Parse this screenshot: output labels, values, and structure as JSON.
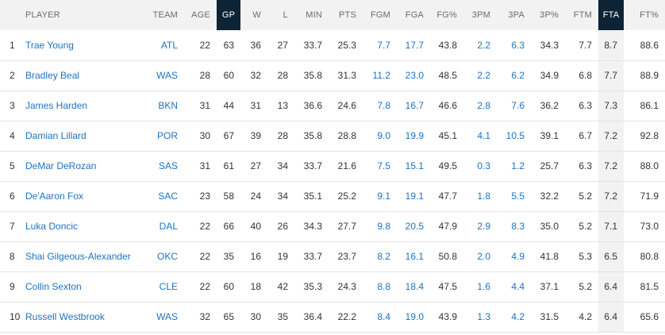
{
  "columns": [
    "",
    "PLAYER",
    "TEAM",
    "AGE",
    "GP",
    "W",
    "L",
    "MIN",
    "PTS",
    "FGM",
    "FGA",
    "FG%",
    "3PM",
    "3PA",
    "3P%",
    "FTM",
    "FTA",
    "FT%"
  ],
  "rows": [
    [
      "1",
      "Trae Young",
      "ATL",
      "22",
      "63",
      "36",
      "27",
      "33.7",
      "25.3",
      "7.7",
      "17.7",
      "43.8",
      "2.2",
      "6.3",
      "34.3",
      "7.7",
      "8.7",
      "88.6"
    ],
    [
      "2",
      "Bradley Beal",
      "WAS",
      "28",
      "60",
      "32",
      "28",
      "35.8",
      "31.3",
      "11.2",
      "23.0",
      "48.5",
      "2.2",
      "6.2",
      "34.9",
      "6.8",
      "7.7",
      "88.9"
    ],
    [
      "3",
      "James Harden",
      "BKN",
      "31",
      "44",
      "31",
      "13",
      "36.6",
      "24.6",
      "7.8",
      "16.7",
      "46.6",
      "2.8",
      "7.6",
      "36.2",
      "6.3",
      "7.3",
      "86.1"
    ],
    [
      "4",
      "Damian Lillard",
      "POR",
      "30",
      "67",
      "39",
      "28",
      "35.8",
      "28.8",
      "9.0",
      "19.9",
      "45.1",
      "4.1",
      "10.5",
      "39.1",
      "6.7",
      "7.2",
      "92.8"
    ],
    [
      "5",
      "DeMar DeRozan",
      "SAS",
      "31",
      "61",
      "27",
      "34",
      "33.7",
      "21.6",
      "7.5",
      "15.1",
      "49.5",
      "0.3",
      "1.2",
      "25.7",
      "6.3",
      "7.2",
      "88.0"
    ],
    [
      "6",
      "De'Aaron Fox",
      "SAC",
      "23",
      "58",
      "24",
      "34",
      "35.1",
      "25.2",
      "9.1",
      "19.1",
      "47.7",
      "1.8",
      "5.5",
      "32.2",
      "5.2",
      "7.2",
      "71.9"
    ],
    [
      "7",
      "Luka Doncic",
      "DAL",
      "22",
      "66",
      "40",
      "26",
      "34.3",
      "27.7",
      "9.8",
      "20.5",
      "47.9",
      "2.9",
      "8.3",
      "35.0",
      "5.2",
      "7.1",
      "73.0"
    ],
    [
      "8",
      "Shai Gilgeous-Alexander",
      "OKC",
      "22",
      "35",
      "16",
      "19",
      "33.7",
      "23.7",
      "8.2",
      "16.1",
      "50.8",
      "2.0",
      "4.9",
      "41.8",
      "5.3",
      "6.5",
      "80.8"
    ],
    [
      "9",
      "Collin Sexton",
      "CLE",
      "22",
      "60",
      "18",
      "42",
      "35.3",
      "24.3",
      "8.8",
      "18.4",
      "47.5",
      "1.6",
      "4.4",
      "37.1",
      "5.2",
      "6.4",
      "81.5"
    ],
    [
      "10",
      "Russell Westbrook",
      "WAS",
      "32",
      "65",
      "30",
      "35",
      "36.4",
      "22.2",
      "8.4",
      "19.0",
      "43.9",
      "1.3",
      "4.2",
      "31.5",
      "4.2",
      "6.4",
      "65.6"
    ]
  ]
}
